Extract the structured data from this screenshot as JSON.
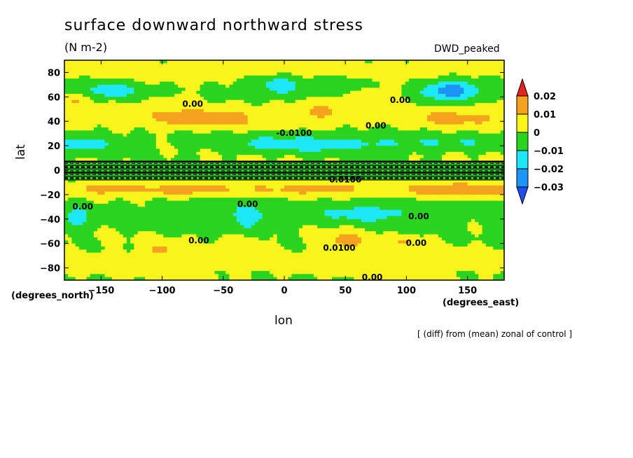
{
  "chart_data": {
    "type": "heatmap",
    "title": "surface downward northward stress",
    "units": "(N m-2)",
    "run_label": "DWD_peaked",
    "xlabel": "lon",
    "ylabel": "lat",
    "x_units": "(degrees_east)",
    "y_units": "(degrees_north)",
    "note": "[ (diff) from (mean) zonal of control ]",
    "xlim": [
      -180,
      180
    ],
    "ylim": [
      -90,
      90
    ],
    "x_ticks": [
      -150,
      -100,
      -50,
      0,
      50,
      100,
      150
    ],
    "y_ticks": [
      80,
      60,
      40,
      20,
      0,
      -20,
      -40,
      -60,
      -80
    ],
    "colorbar": {
      "labels": [
        "0.02",
        "0.01",
        "0",
        "−0.01",
        "−0.02",
        "−0.03"
      ],
      "bins": [
        {
          "range": "> 0.02",
          "color": "#e8221e"
        },
        {
          "range": "0.01 to 0.02",
          "color": "#f5a21f"
        },
        {
          "range": "0 to 0.01",
          "color": "#f8f41c"
        },
        {
          "range": "-0.01 to 0",
          "color": "#2bd41f"
        },
        {
          "range": "-0.02 to -0.01",
          "color": "#1ee7f8"
        },
        {
          "range": "-0.03 to -0.02",
          "color": "#1d94f6"
        },
        {
          "range": "< -0.03",
          "color": "#1c4ef0"
        }
      ]
    },
    "contour_labels": [
      {
        "text": "0.00",
        "lon": -75,
        "lat": 52
      },
      {
        "text": "-0.0100",
        "lon": 8,
        "lat": 28
      },
      {
        "text": "0.00",
        "lon": 75,
        "lat": 34
      },
      {
        "text": "0.00",
        "lon": 95,
        "lat": 55
      },
      {
        "text": "0.0100",
        "lon": 50,
        "lat": -10
      },
      {
        "text": "0.00",
        "lon": -165,
        "lat": -32
      },
      {
        "text": "0.00",
        "lon": -30,
        "lat": -30
      },
      {
        "text": "0.00",
        "lon": 110,
        "lat": -40
      },
      {
        "text": "0.00",
        "lon": -70,
        "lat": -60
      },
      {
        "text": "0.0100",
        "lon": 45,
        "lat": -66
      },
      {
        "text": "0.00",
        "lon": 108,
        "lat": -62
      },
      {
        "text": "0.00",
        "lon": 72,
        "lat": -90
      }
    ]
  }
}
